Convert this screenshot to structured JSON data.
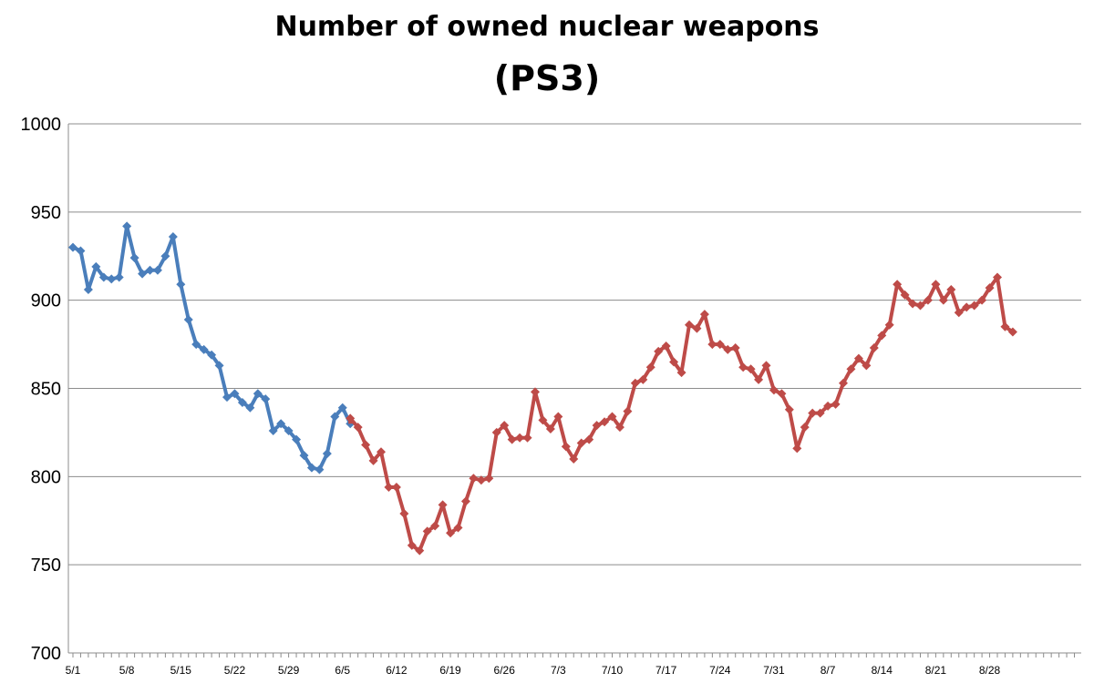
{
  "chart_data": {
    "type": "line",
    "title_line1": "Number of owned nuclear weapons",
    "title_line2": "(PS3)",
    "xlabel": "",
    "ylabel": "",
    "ylim": [
      700,
      1000
    ],
    "yticks": [
      700,
      750,
      800,
      850,
      900,
      950,
      1000
    ],
    "xticks": [
      {
        "label": "5/1",
        "day": 0
      },
      {
        "label": "5/8",
        "day": 7
      },
      {
        "label": "5/15",
        "day": 14
      },
      {
        "label": "5/22",
        "day": 21
      },
      {
        "label": "5/29",
        "day": 28
      },
      {
        "label": "6/5",
        "day": 35
      },
      {
        "label": "6/12",
        "day": 42
      },
      {
        "label": "6/19",
        "day": 49
      },
      {
        "label": "6/26",
        "day": 56
      },
      {
        "label": "7/3",
        "day": 63
      },
      {
        "label": "7/10",
        "day": 70
      },
      {
        "label": "7/17",
        "day": 77
      },
      {
        "label": "7/24",
        "day": 84
      },
      {
        "label": "7/31",
        "day": 91
      },
      {
        "label": "8/7",
        "day": 98
      },
      {
        "label": "8/14",
        "day": 105
      },
      {
        "label": "8/21",
        "day": 112
      },
      {
        "label": "8/28",
        "day": 119
      }
    ],
    "grid": true,
    "legend": "none",
    "series": [
      {
        "color": "#4a7ebb",
        "start_day": 0,
        "values": [
          930,
          928,
          906,
          919,
          913,
          912,
          913,
          942,
          924,
          915,
          917,
          917,
          925,
          936,
          909,
          889,
          875,
          872,
          869,
          863,
          845,
          847,
          842,
          839,
          847,
          844,
          826,
          830,
          826,
          821,
          812,
          805,
          804,
          813,
          834,
          839,
          830
        ]
      },
      {
        "color": "#be4b48",
        "start_day": 36,
        "values": [
          833,
          828,
          818,
          809,
          814,
          794,
          794,
          779,
          761,
          758,
          769,
          772,
          784,
          768,
          771,
          786,
          799,
          798,
          799,
          825,
          829,
          821,
          822,
          822,
          848,
          832,
          827,
          834,
          817,
          810,
          819,
          821,
          829,
          831,
          834,
          828,
          837,
          853,
          855,
          862,
          871,
          874,
          865,
          859,
          886,
          884,
          892,
          875,
          875,
          872,
          873,
          862,
          861,
          855,
          863,
          849,
          847,
          838,
          816,
          828,
          836,
          836,
          840,
          841,
          853,
          861,
          867,
          863,
          873,
          880,
          886,
          909,
          903,
          898,
          897,
          900,
          909,
          900,
          906,
          893,
          896,
          897,
          900,
          907,
          913,
          885,
          882
        ]
      }
    ]
  }
}
